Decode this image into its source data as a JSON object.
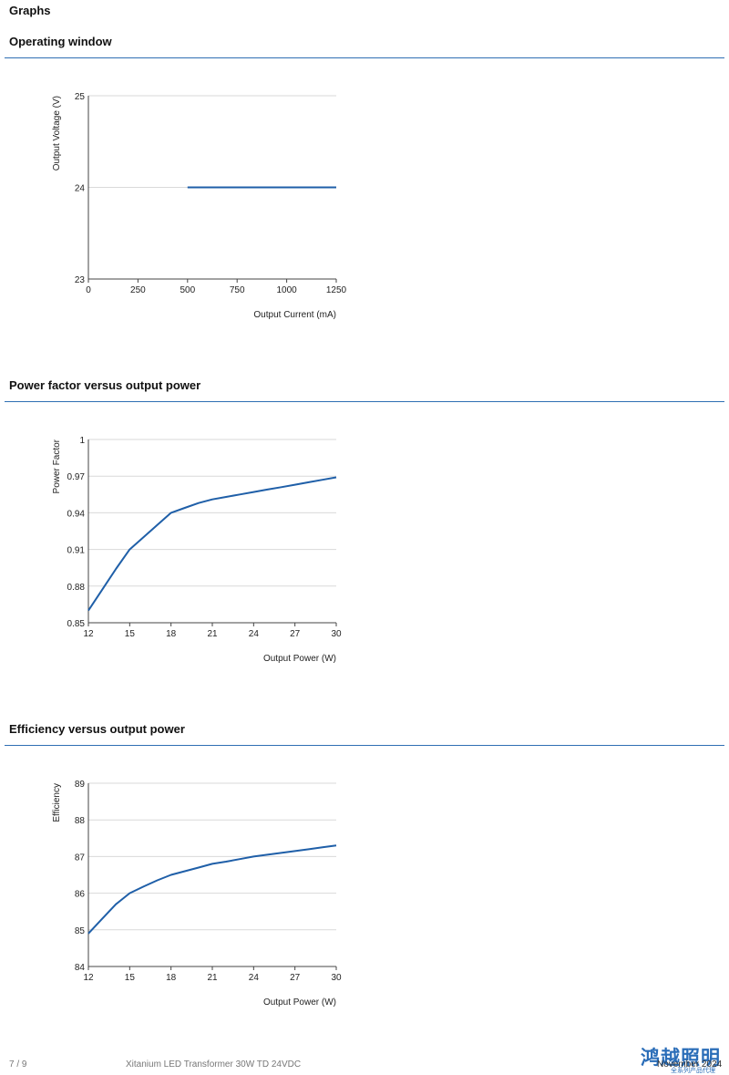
{
  "page": {
    "heading": "Graphs",
    "footer": {
      "page_number": "7 / 9",
      "product": "Xitanium LED Transformer 30W TD 24VDC",
      "date": "November 2024",
      "watermark": "鸿越照明",
      "watermark_sub": "全系列产品代理"
    }
  },
  "sections": [
    {
      "title": "Operating window"
    },
    {
      "title": "Power factor versus output power"
    },
    {
      "title": "Efficiency versus output power"
    }
  ],
  "chart_data": [
    {
      "type": "line",
      "title": "Operating window",
      "xlabel": "Output Current (mA)",
      "ylabel": "Output Voltage (V)",
      "xlim": [
        0,
        1250
      ],
      "ylim": [
        23,
        25
      ],
      "xticks": [
        0,
        250,
        500,
        750,
        1000,
        1250
      ],
      "xtick_labels": [
        "0",
        "250",
        "500",
        "750",
        "1000",
        "1250"
      ],
      "yticks": [
        23,
        24,
        25
      ],
      "ytick_labels": [
        "23",
        "24",
        "25"
      ],
      "grid": true,
      "series": [
        {
          "x": [
            500,
            1250
          ],
          "y": [
            24,
            24
          ],
          "color": "#1f5fa8"
        }
      ]
    },
    {
      "type": "line",
      "title": "Power factor versus output power",
      "xlabel": "Output Power (W)",
      "ylabel": "Power Factor",
      "xlim": [
        12,
        30
      ],
      "ylim": [
        0.85,
        1
      ],
      "xticks": [
        12,
        15,
        18,
        21,
        24,
        27,
        30
      ],
      "xtick_labels": [
        "12",
        "15",
        "18",
        "21",
        "24",
        "27",
        "30"
      ],
      "yticks": [
        0.85,
        0.88,
        0.91,
        0.94,
        0.97,
        1
      ],
      "ytick_labels": [
        "0.85",
        "0.88",
        "0.91",
        "0.94",
        "0.97",
        "1"
      ],
      "grid": true,
      "series": [
        {
          "x": [
            12,
            13,
            14,
            15,
            16,
            17,
            18,
            19,
            20,
            21,
            22,
            23,
            24,
            25,
            26,
            27,
            28,
            29,
            30
          ],
          "y": [
            0.86,
            0.877,
            0.894,
            0.91,
            0.92,
            0.93,
            0.94,
            0.944,
            0.948,
            0.951,
            0.953,
            0.955,
            0.957,
            0.959,
            0.961,
            0.963,
            0.965,
            0.967,
            0.969
          ],
          "color": "#1f5fa8"
        }
      ]
    },
    {
      "type": "line",
      "title": "Efficiency versus output power",
      "xlabel": "Output Power (W)",
      "ylabel": "Efficiency",
      "xlim": [
        12,
        30
      ],
      "ylim": [
        84,
        89
      ],
      "xticks": [
        12,
        15,
        18,
        21,
        24,
        27,
        30
      ],
      "xtick_labels": [
        "12",
        "15",
        "18",
        "21",
        "24",
        "27",
        "30"
      ],
      "yticks": [
        84,
        85,
        86,
        87,
        88,
        89
      ],
      "ytick_labels": [
        "84",
        "85",
        "86",
        "87",
        "88",
        "89"
      ],
      "grid": true,
      "series": [
        {
          "x": [
            12,
            13,
            14,
            15,
            16,
            17,
            18,
            19,
            20,
            21,
            22,
            23,
            24,
            25,
            26,
            27,
            28,
            29,
            30
          ],
          "y": [
            84.9,
            85.3,
            85.7,
            86.0,
            86.18,
            86.35,
            86.5,
            86.6,
            86.7,
            86.8,
            86.86,
            86.93,
            87.0,
            87.05,
            87.1,
            87.15,
            87.2,
            87.25,
            87.3
          ],
          "color": "#1f5fa8"
        }
      ]
    }
  ]
}
